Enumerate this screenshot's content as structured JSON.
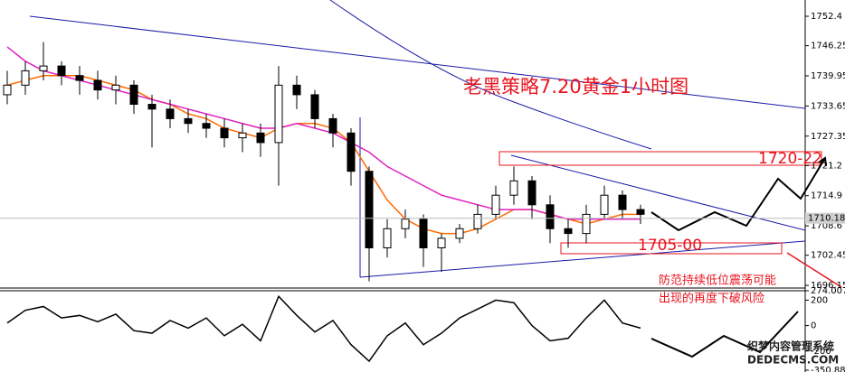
{
  "chart_data": [
    {
      "type": "candlestick",
      "title": "老黑策略7.20黄金1小时图",
      "annotations": [
        "1720-22",
        "1705-00",
        "防范持续低位震荡可能",
        "出现的再度下破风险"
      ],
      "watermark": [
        "织梦内容管理系统",
        "DEDECMS.COM"
      ],
      "open": [
        1736,
        1738,
        1741,
        1742,
        1740,
        1739,
        1737,
        1738,
        1734,
        1733,
        1731,
        1730,
        1729,
        1727,
        1728,
        1726,
        1738,
        1736,
        1731,
        1728,
        1720,
        1704,
        1708,
        1710,
        1704,
        1706,
        1708,
        1711,
        1715,
        1718,
        1713,
        1708,
        1707,
        1711,
        1715,
        1712
      ],
      "high": [
        1741,
        1743,
        1747,
        1743,
        1742,
        1741,
        1740,
        1739,
        1736,
        1735,
        1733,
        1732,
        1731,
        1730,
        1730,
        1742,
        1740,
        1737,
        1732,
        1729,
        1721,
        1710,
        1712,
        1711,
        1707,
        1709,
        1713,
        1717,
        1721,
        1719,
        1715,
        1710,
        1713,
        1717,
        1716,
        1713
      ],
      "low": [
        1734,
        1736,
        1739,
        1738,
        1736,
        1735,
        1734,
        1732,
        1725,
        1729,
        1728,
        1727,
        1725,
        1724,
        1723,
        1717,
        1733,
        1729,
        1725,
        1717,
        1697,
        1702,
        1706,
        1700,
        1699,
        1705,
        1707,
        1710,
        1713,
        1710,
        1705,
        1704,
        1705,
        1710,
        1710,
        1709
      ],
      "close": [
        1738,
        1741,
        1742,
        1740,
        1739,
        1737,
        1738,
        1734,
        1733,
        1731,
        1730,
        1729,
        1727,
        1728,
        1726,
        1738,
        1736,
        1731,
        1728,
        1720,
        1704,
        1708,
        1710,
        1704,
        1706,
        1708,
        1711,
        1715,
        1718,
        1713,
        1708,
        1707,
        1711,
        1715,
        1712,
        1711
      ],
      "series": [
        {
          "color": "#ff6a00",
          "values": [
            1738,
            1739,
            1740,
            1740,
            1740,
            1739,
            1738,
            1737,
            1735,
            1734,
            1732,
            1731,
            1729,
            1728,
            1727,
            1729,
            1730,
            1730,
            1729,
            1726,
            1720,
            1714,
            1710,
            1708,
            1707,
            1707,
            1708,
            1710,
            1712,
            1712,
            1711,
            1710,
            1709,
            1710,
            1711,
            1711
          ]
        },
        {
          "color": "#e020c0",
          "values": [
            1746,
            1743,
            1741,
            1740,
            1739,
            1738,
            1737,
            1736,
            1735,
            1734,
            1733,
            1732,
            1731,
            1730,
            1729,
            1729,
            1730,
            1729,
            1728,
            1726,
            1724,
            1721,
            1719,
            1717,
            1715,
            1714,
            1713,
            1712,
            1712,
            1712,
            1711,
            1710,
            1710,
            1710,
            1710,
            1710
          ]
        }
      ],
      "last_price": 1710.18,
      "ylim": [
        1695.6,
        1755.8
      ],
      "yticks": [
        1752.4,
        1746.25,
        1739.95,
        1733.65,
        1727.35,
        1721.2,
        1714.9,
        1708.6,
        1702.45,
        1696.15
      ],
      "color": "#000000"
    },
    {
      "type": "line",
      "values": [
        20,
        120,
        150,
        60,
        80,
        30,
        90,
        -40,
        -60,
        40,
        -20,
        60,
        -80,
        10,
        -120,
        230,
        80,
        -50,
        40,
        -150,
        -280,
        -80,
        20,
        -150,
        -60,
        60,
        130,
        200,
        180,
        0,
        -120,
        -100,
        60,
        200,
        20,
        -20
      ],
      "color": "#000000",
      "ylim": [
        -350.881,
        274.0076
      ],
      "yticks": [
        274.0076,
        200,
        0,
        -200,
        -350.881
      ]
    }
  ]
}
